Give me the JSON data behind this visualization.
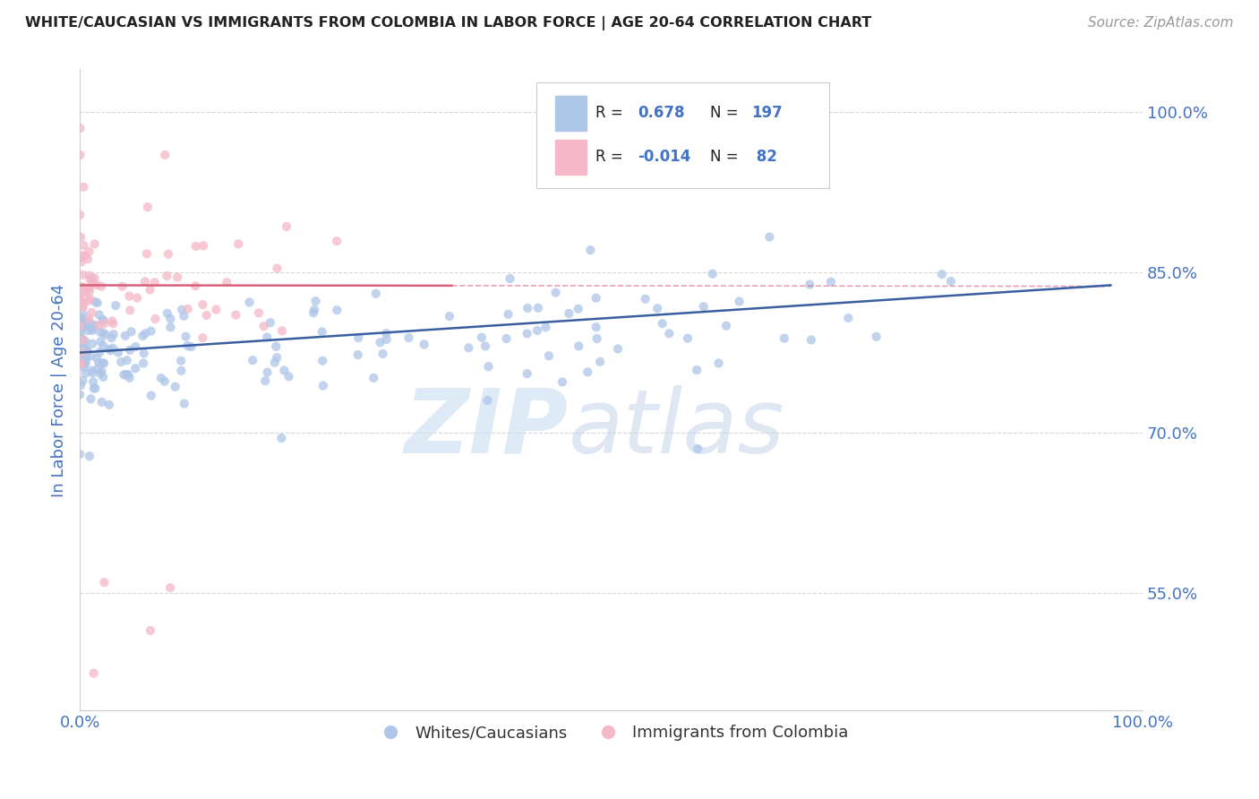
{
  "title": "WHITE/CAUCASIAN VS IMMIGRANTS FROM COLOMBIA IN LABOR FORCE | AGE 20-64 CORRELATION CHART",
  "source": "Source: ZipAtlas.com",
  "xlabel": "",
  "ylabel": "In Labor Force | Age 20-64",
  "xlim": [
    0.0,
    1.0
  ],
  "ylim": [
    0.44,
    1.04
  ],
  "blue_R": 0.678,
  "blue_N": 197,
  "pink_R": -0.014,
  "pink_N": 82,
  "blue_color": "#aec6e8",
  "pink_color": "#f4b8c8",
  "blue_line_color": "#3a5fa0",
  "pink_line_color": "#d9607a",
  "blue_scatter_color": "#aec6e8",
  "pink_scatter_color": "#f4b8c8",
  "watermark_zip": "ZIP",
  "watermark_atlas": "atlas",
  "legend_label_blue": "Whites/Caucasians",
  "legend_label_pink": "Immigrants from Colombia",
  "grid_color": "#d8d8d8",
  "background_color": "#ffffff",
  "title_color": "#222222",
  "source_color": "#999999",
  "axis_label_color": "#4472c4",
  "tick_label_color": "#4472c4",
  "blue_line_slope": 0.065,
  "blue_line_intercept": 0.775,
  "pink_line_slope": -0.001,
  "pink_line_intercept": 0.838,
  "pink_line_dashed_slope": -0.001,
  "pink_line_dashed_intercept": 0.838,
  "seed": 42
}
